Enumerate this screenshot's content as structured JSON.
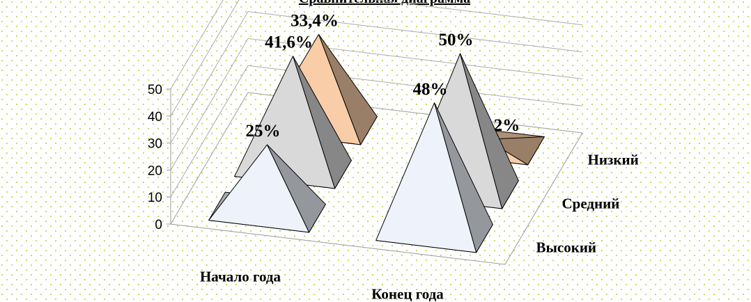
{
  "chart_data": {
    "type": "pyramid3d",
    "title": "Сравнительная диаграмма",
    "categories": [
      "Начало года",
      "Конец года"
    ],
    "series": [
      {
        "name": "Высокий",
        "color": "#eef3fb",
        "values": [
          25,
          48
        ],
        "value_labels": [
          "25%",
          "48%"
        ]
      },
      {
        "name": "Средний",
        "color": "#d9d9d9",
        "values": [
          41.6,
          50
        ],
        "value_labels": [
          "41,6%",
          "50%"
        ]
      },
      {
        "name": "Низкий",
        "color": "#f8cda8",
        "values": [
          33.4,
          2
        ],
        "value_labels": [
          "33,4%",
          "2%"
        ]
      }
    ],
    "ylim": [
      0,
      50
    ],
    "yticks": [
      0,
      10,
      20,
      30,
      40,
      50
    ],
    "grid": true
  }
}
